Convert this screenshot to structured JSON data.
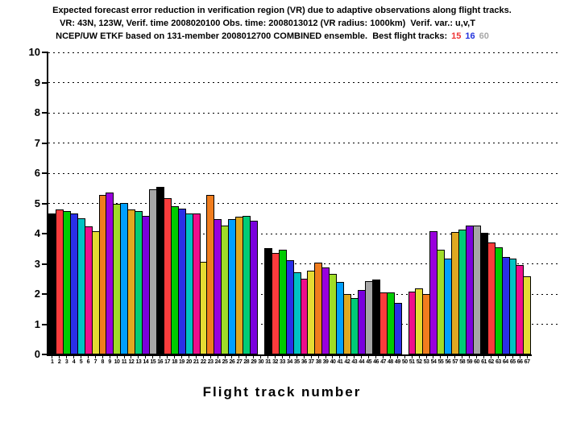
{
  "header": {
    "line1": "Expected forecast error reduction in verification region (VR) due to adaptive observations along flight tracks.",
    "line2": "VR: 43N, 123W, Verif. time 2008020100 Obs. time: 2008013012 (VR radius: 1000km)  Verif. var.: u,v,T",
    "line3_prefix": "NCEP/UW ETKF based on 131-member 2008012700 COMBINED ensemble.  Best flight tracks:",
    "best_tracks": [
      {
        "label": "15",
        "color": "#ee3333"
      },
      {
        "label": "16",
        "color": "#2233dd"
      },
      {
        "label": "60",
        "color": "#a8a8a8"
      }
    ]
  },
  "chart_data": {
    "type": "bar",
    "title": "Expected forecast error reduction in verification region (VR) due to adaptive observations along flight tracks.",
    "xlabel": "Flight track number",
    "ylabel": "",
    "ylim": [
      0,
      10
    ],
    "yticks": [
      0,
      1,
      2,
      3,
      4,
      5,
      6,
      7,
      8,
      9,
      10
    ],
    "grid": "horizontal-dotted",
    "legend": "none",
    "categories": [
      "1",
      "2",
      "3",
      "4",
      "5",
      "6",
      "7",
      "8",
      "9",
      "10",
      "11",
      "12",
      "13",
      "14",
      "15",
      "16",
      "17",
      "18",
      "19",
      "20",
      "21",
      "22",
      "23",
      "24",
      "25",
      "26",
      "27",
      "28",
      "29",
      "30",
      "31",
      "32",
      "33",
      "34",
      "35",
      "36",
      "37",
      "38",
      "39",
      "40",
      "41",
      "42",
      "43",
      "44",
      "45",
      "46",
      "47",
      "48",
      "49",
      "50",
      "51",
      "52",
      "53",
      "54",
      "55",
      "56",
      "57",
      "58",
      "59",
      "60",
      "61",
      "62",
      "63",
      "64",
      "65",
      "66",
      "67"
    ],
    "values": [
      4.67,
      4.8,
      4.76,
      4.68,
      4.51,
      4.24,
      4.07,
      5.29,
      5.35,
      4.98,
      5.02,
      4.8,
      4.76,
      4.6,
      5.47,
      5.54,
      5.17,
      4.91,
      4.83,
      4.68,
      4.68,
      3.08,
      5.29,
      4.49,
      4.28,
      4.49,
      4.55,
      4.58,
      4.42,
      0,
      3.51,
      3.35,
      3.48,
      3.11,
      2.71,
      2.51,
      2.77,
      3.04,
      2.89,
      2.67,
      2.4,
      2.0,
      1.88,
      2.13,
      2.44,
      2.48,
      2.06,
      2.06,
      1.71,
      0,
      2.09,
      2.19,
      2.0,
      4.07,
      3.47,
      3.18,
      4.05,
      4.13,
      4.28,
      4.27,
      4.02,
      3.71,
      3.55,
      3.24,
      3.18,
      2.95,
      2.59
    ],
    "missing_tracks": [
      30,
      50
    ],
    "palette_cycle15": [
      "#000000",
      "#fa3c3c",
      "#00cc00",
      "#2a2fe8",
      "#00c3c3",
      "#ee0e8c",
      "#e5dc33",
      "#f07d1e",
      "#9900dd",
      "#a0dc28",
      "#009fff",
      "#dfa821",
      "#00cc77",
      "#7a00dd",
      "#a6a6a6"
    ]
  }
}
